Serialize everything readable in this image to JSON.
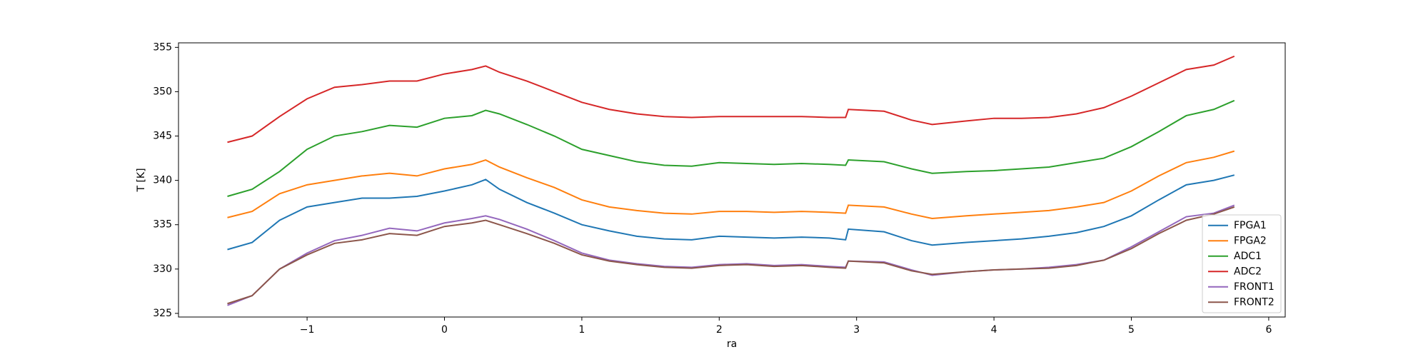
{
  "chart_data": {
    "type": "line",
    "xlabel": "ra",
    "ylabel": "T [K]",
    "x": [
      -1.58,
      -1.4,
      -1.2,
      -1.0,
      -0.8,
      -0.6,
      -0.4,
      -0.2,
      0,
      0.2,
      0.3,
      0.4,
      0.6,
      0.8,
      1.0,
      1.2,
      1.4,
      1.6,
      1.8,
      2.0,
      2.2,
      2.4,
      2.6,
      2.8,
      2.92,
      2.94,
      3.2,
      3.4,
      3.55,
      3.8,
      4.0,
      4.2,
      4.4,
      4.6,
      4.8,
      5.0,
      5.2,
      5.4,
      5.6,
      5.75
    ],
    "series": [
      {
        "name": "FPGA1",
        "color": "#1f77b4",
        "values": [
          332.2,
          333.0,
          335.5,
          337.0,
          337.5,
          338.0,
          338.0,
          338.2,
          338.8,
          339.5,
          340.1,
          339.0,
          337.5,
          336.3,
          335.0,
          334.3,
          333.7,
          333.4,
          333.3,
          333.7,
          333.6,
          333.5,
          333.6,
          333.5,
          333.3,
          334.5,
          334.2,
          333.2,
          332.7,
          333.0,
          333.2,
          333.4,
          333.7,
          334.1,
          334.8,
          336.0,
          337.8,
          339.5,
          340.0,
          340.6
        ]
      },
      {
        "name": "FPGA2",
        "color": "#ff7f0e",
        "values": [
          335.8,
          336.5,
          338.5,
          339.5,
          340.0,
          340.5,
          340.8,
          340.5,
          341.3,
          341.8,
          342.3,
          341.5,
          340.3,
          339.2,
          337.8,
          337.0,
          336.6,
          336.3,
          336.2,
          336.5,
          336.5,
          336.4,
          336.5,
          336.4,
          336.3,
          337.2,
          337.0,
          336.2,
          335.7,
          336.0,
          336.2,
          336.4,
          336.6,
          337.0,
          337.5,
          338.8,
          340.5,
          342.0,
          342.6,
          343.3
        ]
      },
      {
        "name": "ADC1",
        "color": "#2ca02c",
        "values": [
          338.2,
          339.0,
          341.0,
          343.5,
          345.0,
          345.5,
          346.2,
          346.0,
          347.0,
          347.3,
          347.9,
          347.5,
          346.3,
          345.0,
          343.5,
          342.8,
          342.1,
          341.7,
          341.6,
          342.0,
          341.9,
          341.8,
          341.9,
          341.8,
          341.7,
          342.3,
          342.1,
          341.3,
          340.8,
          341.0,
          341.1,
          341.3,
          341.5,
          342.0,
          342.5,
          343.8,
          345.5,
          347.3,
          348.0,
          349.0
        ]
      },
      {
        "name": "ADC2",
        "color": "#d62728",
        "values": [
          344.3,
          345.0,
          347.2,
          349.2,
          350.5,
          350.8,
          351.2,
          351.2,
          352.0,
          352.5,
          352.9,
          352.2,
          351.2,
          350.0,
          348.8,
          348.0,
          347.5,
          347.2,
          347.1,
          347.2,
          347.2,
          347.2,
          347.2,
          347.1,
          347.1,
          348.0,
          347.8,
          346.8,
          346.3,
          346.7,
          347.0,
          347.0,
          347.1,
          347.5,
          348.2,
          349.5,
          351.0,
          352.5,
          353.0,
          354.0
        ]
      },
      {
        "name": "FRONT1",
        "color": "#9467bd",
        "values": [
          325.9,
          327.0,
          330.0,
          331.8,
          333.2,
          333.8,
          334.6,
          334.3,
          335.2,
          335.7,
          336.0,
          335.6,
          334.5,
          333.2,
          331.8,
          331.0,
          330.6,
          330.3,
          330.2,
          330.5,
          330.6,
          330.4,
          330.5,
          330.3,
          330.2,
          330.9,
          330.8,
          329.9,
          329.3,
          329.7,
          329.9,
          330.0,
          330.2,
          330.5,
          331.0,
          332.5,
          334.2,
          335.9,
          336.3,
          337.2
        ]
      },
      {
        "name": "FRONT2",
        "color": "#8c564b",
        "values": [
          326.1,
          327.0,
          330.0,
          331.6,
          332.9,
          333.3,
          334.0,
          333.8,
          334.8,
          335.2,
          335.5,
          335.0,
          334.0,
          332.9,
          331.6,
          330.9,
          330.5,
          330.2,
          330.1,
          330.4,
          330.5,
          330.3,
          330.4,
          330.2,
          330.1,
          330.9,
          330.7,
          329.8,
          329.4,
          329.7,
          329.9,
          330.0,
          330.1,
          330.4,
          331.0,
          332.3,
          334.0,
          335.5,
          336.2,
          337.0
        ]
      }
    ],
    "xlim": [
      -1.936,
      6.12
    ],
    "ylim": [
      324.59,
      355.51
    ],
    "xticks": [
      {
        "value": -1,
        "label": "−1"
      },
      0,
      1,
      2,
      3,
      4,
      5,
      6
    ],
    "yticks": [
      325,
      330,
      335,
      340,
      345,
      350,
      355
    ],
    "grid": false,
    "legend": "lower right"
  }
}
